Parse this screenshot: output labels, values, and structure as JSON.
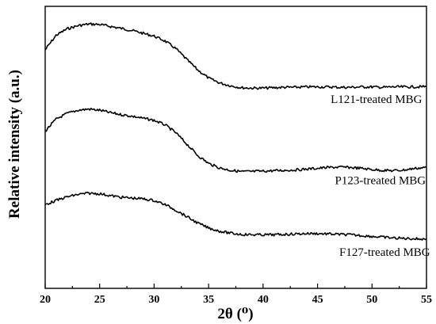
{
  "chart_data": {
    "type": "line",
    "xlabel": "2θ (⁰)",
    "ylabel": "Relative intensity (a.u.)",
    "xlim": [
      20,
      55
    ],
    "xticks": [
      20,
      25,
      30,
      35,
      40,
      45,
      50,
      55
    ],
    "y_ticks_shown": false,
    "grid": false,
    "legend": "none",
    "series": [
      {
        "name": "L121-treated MBG",
        "label_anchor_x": 46.2,
        "x": [
          20,
          21,
          22,
          23,
          24,
          25,
          26,
          27,
          28,
          29,
          30,
          31,
          32,
          33,
          34,
          35,
          36,
          37,
          38,
          39,
          40,
          41,
          42,
          43,
          44,
          45,
          46,
          47,
          48,
          49,
          50,
          51,
          52,
          53,
          54,
          55
        ],
        "y": [
          5.92,
          6.28,
          6.44,
          6.52,
          6.56,
          6.55,
          6.5,
          6.45,
          6.4,
          6.33,
          6.26,
          6.14,
          5.95,
          5.68,
          5.42,
          5.22,
          5.1,
          5.03,
          4.98,
          4.97,
          4.97,
          4.98,
          4.99,
          4.99,
          5.0,
          5.0,
          5.0,
          4.99,
          4.99,
          5.0,
          5.0,
          4.99,
          5.0,
          5.0,
          5.0,
          5.01
        ]
      },
      {
        "name": "P123-treated MBG",
        "label_anchor_x": 46.6,
        "x": [
          20,
          21,
          22,
          23,
          24,
          25,
          26,
          27,
          28,
          29,
          30,
          31,
          32,
          33,
          34,
          35,
          36,
          37,
          38,
          39,
          40,
          41,
          42,
          43,
          44,
          45,
          46,
          47,
          48,
          49,
          50,
          51,
          52,
          53,
          54,
          55
        ],
        "y": [
          3.9,
          4.2,
          4.34,
          4.42,
          4.45,
          4.42,
          4.36,
          4.31,
          4.27,
          4.22,
          4.17,
          4.06,
          3.86,
          3.58,
          3.3,
          3.1,
          2.99,
          2.93,
          2.9,
          2.9,
          2.91,
          2.92,
          2.93,
          2.94,
          2.96,
          2.98,
          3.0,
          3.01,
          3.0,
          2.98,
          2.95,
          2.93,
          2.92,
          2.94,
          2.98,
          3.0
        ]
      },
      {
        "name": "F127-treated MBG",
        "label_anchor_x": 47.0,
        "x": [
          20,
          21,
          22,
          23,
          24,
          25,
          26,
          27,
          28,
          29,
          30,
          31,
          32,
          33,
          34,
          35,
          36,
          37,
          38,
          39,
          40,
          41,
          42,
          43,
          44,
          45,
          46,
          47,
          48,
          49,
          50,
          51,
          52,
          53,
          54,
          55
        ],
        "y": [
          2.08,
          2.18,
          2.27,
          2.33,
          2.36,
          2.35,
          2.3,
          2.26,
          2.24,
          2.22,
          2.18,
          2.08,
          1.94,
          1.78,
          1.62,
          1.5,
          1.42,
          1.37,
          1.34,
          1.33,
          1.33,
          1.33,
          1.34,
          1.35,
          1.36,
          1.36,
          1.35,
          1.34,
          1.33,
          1.31,
          1.29,
          1.27,
          1.25,
          1.24,
          1.23,
          1.22
        ]
      }
    ]
  }
}
